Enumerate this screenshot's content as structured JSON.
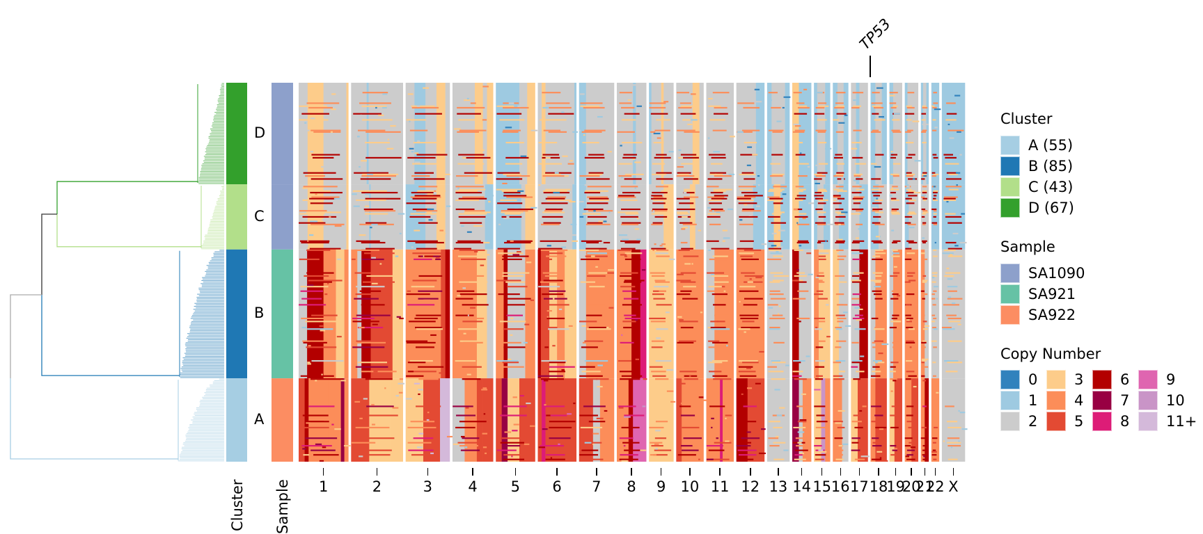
{
  "chart_data": {
    "type": "heatmap",
    "title": "",
    "xlabel": "",
    "ylabel": "",
    "x_tick_labels": [
      "1",
      "2",
      "3",
      "4",
      "5",
      "6",
      "7",
      "8",
      "9",
      "10",
      "11",
      "12",
      "13",
      "14",
      "15",
      "16",
      "17",
      "18",
      "19",
      "20",
      "21",
      "22",
      "X"
    ],
    "row_annotation_labels": [
      "Cluster",
      "Sample"
    ],
    "gene_annotations": [
      {
        "gene": "TP53",
        "chromosome": "17"
      }
    ],
    "clusters": [
      {
        "id": "D",
        "cells": 67,
        "sample": "SA1090",
        "color": "#33a02c",
        "dendro_color": "#33a02c"
      },
      {
        "id": "C",
        "cells": 43,
        "sample": "SA1090",
        "color": "#b2df8a",
        "dendro_color": "#b2df8a"
      },
      {
        "id": "B",
        "cells": 85,
        "sample": "SA921",
        "color": "#1f78b4",
        "dendro_color": "#1f78b4"
      },
      {
        "id": "A",
        "cells": 55,
        "sample": "SA922",
        "color": "#a6cee3",
        "dendro_color": "#a6cee3"
      }
    ],
    "legends": {
      "cluster": {
        "title": "Cluster",
        "items": [
          {
            "label": "A (55)",
            "color": "#a6cee3"
          },
          {
            "label": "B (85)",
            "color": "#1f78b4"
          },
          {
            "label": "C (43)",
            "color": "#b2df8a"
          },
          {
            "label": "D (67)",
            "color": "#33a02c"
          }
        ]
      },
      "sample": {
        "title": "Sample",
        "items": [
          {
            "label": "SA1090",
            "color": "#8da0cb"
          },
          {
            "label": "SA921",
            "color": "#66c2a5"
          },
          {
            "label": "SA922",
            "color": "#fc8d62"
          }
        ]
      },
      "copy_number": {
        "title": "Copy Number",
        "items": [
          {
            "label": "0",
            "color": "#3182bd"
          },
          {
            "label": "1",
            "color": "#9ecae1"
          },
          {
            "label": "2",
            "color": "#cccccc"
          },
          {
            "label": "3",
            "color": "#fdcc8a"
          },
          {
            "label": "4",
            "color": "#fc8d59"
          },
          {
            "label": "5",
            "color": "#e34a33"
          },
          {
            "label": "6",
            "color": "#b30000"
          },
          {
            "label": "7",
            "color": "#980043"
          },
          {
            "label": "8",
            "color": "#dd1c77"
          },
          {
            "label": "9",
            "color": "#df65b0"
          },
          {
            "label": "10",
            "color": "#c994c7"
          },
          {
            "label": "11+",
            "color": "#d4b9da"
          }
        ]
      }
    },
    "copy_number_profiles": {
      "D": {
        "1": [
          [
            0.18,
            2
          ],
          [
            0.5,
            3
          ],
          [
            0.96,
            2
          ],
          [
            1,
            3
          ]
        ],
        "2": [
          [
            0.3,
            2
          ],
          [
            0.34,
            1
          ],
          [
            1,
            2
          ]
        ],
        "3": [
          [
            0.2,
            2
          ],
          [
            0.45,
            1
          ],
          [
            0.7,
            2
          ],
          [
            0.9,
            3
          ],
          [
            1,
            2
          ]
        ],
        "4": [
          [
            0.55,
            2
          ],
          [
            0.75,
            3
          ],
          [
            0.85,
            2
          ],
          [
            1,
            3
          ]
        ],
        "5": [
          [
            0.1,
            1
          ],
          [
            0.6,
            1
          ],
          [
            0.8,
            2
          ],
          [
            1,
            3
          ]
        ],
        "6": [
          [
            0.1,
            2
          ],
          [
            0.2,
            3
          ],
          [
            0.95,
            2
          ],
          [
            1,
            1
          ]
        ],
        "7": [
          [
            0.2,
            1
          ],
          [
            1,
            2
          ]
        ],
        "8": [
          [
            0.55,
            2
          ],
          [
            0.65,
            1
          ],
          [
            1,
            2
          ]
        ],
        "9": [
          [
            0.1,
            1
          ],
          [
            0.5,
            2
          ],
          [
            0.6,
            3
          ],
          [
            1,
            2
          ]
        ],
        "10": [
          [
            0.6,
            2
          ],
          [
            0.85,
            3
          ],
          [
            1,
            2
          ]
        ],
        "11": [
          [
            0.2,
            2
          ],
          [
            1,
            2
          ]
        ],
        "12": [
          [
            0.7,
            2
          ],
          [
            1,
            1
          ]
        ],
        "13": [
          [
            0.2,
            1
          ],
          [
            0.8,
            2
          ],
          [
            1,
            1
          ]
        ],
        "14": [
          [
            0.35,
            3
          ],
          [
            1,
            1
          ]
        ],
        "15": [
          [
            0.2,
            1
          ],
          [
            0.7,
            2
          ],
          [
            1,
            1
          ]
        ],
        "16": [
          [
            0.3,
            1
          ],
          [
            0.7,
            2
          ],
          [
            1,
            1
          ]
        ],
        "17": [
          [
            0.3,
            2
          ],
          [
            0.5,
            1
          ],
          [
            1,
            2
          ]
        ],
        "18": [
          [
            0.3,
            1
          ],
          [
            0.7,
            2
          ],
          [
            1,
            1
          ]
        ],
        "19": [
          [
            0.3,
            1
          ],
          [
            1,
            2
          ]
        ],
        "20": [
          [
            0.2,
            1
          ],
          [
            1,
            2
          ]
        ],
        "21": [
          [
            0.3,
            1
          ],
          [
            0.7,
            2
          ],
          [
            1,
            1
          ]
        ],
        "22": [
          [
            1,
            1
          ]
        ],
        "X": [
          [
            1,
            1
          ]
        ]
      },
      "C": {
        "1": [
          [
            0.18,
            2
          ],
          [
            0.5,
            3
          ],
          [
            0.96,
            2
          ],
          [
            1,
            3
          ]
        ],
        "2": [
          [
            0.35,
            2
          ],
          [
            0.38,
            1
          ],
          [
            1,
            2
          ]
        ],
        "3": [
          [
            0.45,
            1
          ],
          [
            0.7,
            2
          ],
          [
            0.9,
            3
          ],
          [
            1,
            2
          ]
        ],
        "4": [
          [
            0.6,
            2
          ],
          [
            0.8,
            2
          ],
          [
            1,
            1
          ]
        ],
        "5": [
          [
            0.2,
            1
          ],
          [
            0.65,
            1
          ],
          [
            0.75,
            2
          ],
          [
            1,
            3
          ]
        ],
        "6": [
          [
            0.15,
            2
          ],
          [
            0.9,
            2
          ],
          [
            1,
            1
          ]
        ],
        "7": [
          [
            0.2,
            1
          ],
          [
            1,
            2
          ]
        ],
        "8": [
          [
            1,
            2
          ]
        ],
        "9": [
          [
            0.6,
            2
          ],
          [
            1,
            3
          ]
        ],
        "10": [
          [
            0.5,
            2
          ],
          [
            0.7,
            3
          ],
          [
            1,
            2
          ]
        ],
        "11": [
          [
            1,
            2
          ]
        ],
        "12": [
          [
            0.6,
            2
          ],
          [
            1,
            1
          ]
        ],
        "13": [
          [
            0.3,
            1
          ],
          [
            0.6,
            3
          ],
          [
            1,
            1
          ]
        ],
        "14": [
          [
            0.35,
            3
          ],
          [
            1,
            1
          ]
        ],
        "15": [
          [
            0.2,
            1
          ],
          [
            0.6,
            2
          ],
          [
            1,
            1
          ]
        ],
        "16": [
          [
            0.4,
            2
          ],
          [
            1,
            1
          ]
        ],
        "17": [
          [
            0.5,
            2
          ],
          [
            1,
            1
          ]
        ],
        "18": [
          [
            0.5,
            1
          ],
          [
            1,
            2
          ]
        ],
        "19": [
          [
            1,
            2
          ]
        ],
        "20": [
          [
            0.3,
            1
          ],
          [
            1,
            2
          ]
        ],
        "21": [
          [
            1,
            2
          ]
        ],
        "22": [
          [
            1,
            1
          ]
        ],
        "X": [
          [
            1,
            1
          ]
        ]
      },
      "B": {
        "1": [
          [
            0.17,
            2
          ],
          [
            0.5,
            6
          ],
          [
            0.75,
            4
          ],
          [
            0.92,
            3
          ],
          [
            1,
            4
          ]
        ],
        "2": [
          [
            0.12,
            4
          ],
          [
            0.2,
            2
          ],
          [
            0.38,
            6
          ],
          [
            0.8,
            5
          ],
          [
            1,
            3
          ]
        ],
        "3": [
          [
            0.4,
            4
          ],
          [
            0.8,
            4
          ],
          [
            0.9,
            5
          ],
          [
            1,
            6
          ]
        ],
        "4": [
          [
            0.6,
            4
          ],
          [
            0.85,
            3
          ],
          [
            1,
            2
          ]
        ],
        "5": [
          [
            0.2,
            4
          ],
          [
            0.3,
            6
          ],
          [
            0.75,
            2
          ],
          [
            1,
            4
          ]
        ],
        "6": [
          [
            0.08,
            6
          ],
          [
            0.3,
            5
          ],
          [
            0.5,
            3
          ],
          [
            0.7,
            4
          ],
          [
            1,
            3
          ]
        ],
        "7": [
          [
            0.2,
            2
          ],
          [
            1,
            4
          ]
        ],
        "8": [
          [
            0.5,
            4
          ],
          [
            0.8,
            6
          ],
          [
            1,
            8
          ]
        ],
        "9": [
          [
            1,
            3
          ]
        ],
        "10": [
          [
            1,
            4
          ]
        ],
        "11": [
          [
            0.3,
            2
          ],
          [
            1,
            4
          ]
        ],
        "12": [
          [
            1,
            4
          ]
        ],
        "13": [
          [
            1,
            2
          ]
        ],
        "14": [
          [
            0.35,
            6
          ],
          [
            1,
            2
          ]
        ],
        "15": [
          [
            0.3,
            4
          ],
          [
            0.6,
            3
          ],
          [
            1,
            3
          ]
        ],
        "16": [
          [
            0.4,
            3
          ],
          [
            1,
            2
          ]
        ],
        "17": [
          [
            0.5,
            2
          ],
          [
            1,
            6
          ]
        ],
        "18": [
          [
            0.3,
            2
          ],
          [
            1,
            4
          ]
        ],
        "19": [
          [
            0.3,
            2
          ],
          [
            1,
            4
          ]
        ],
        "20": [
          [
            1,
            4
          ]
        ],
        "21": [
          [
            0.5,
            4
          ],
          [
            1,
            2
          ]
        ],
        "22": [
          [
            1,
            2
          ]
        ],
        "X": [
          [
            1,
            2
          ]
        ]
      },
      "A": {
        "1": [
          [
            0.12,
            5
          ],
          [
            0.2,
            6
          ],
          [
            0.6,
            4
          ],
          [
            0.85,
            4
          ],
          [
            0.92,
            7
          ],
          [
            1,
            4
          ]
        ],
        "2": [
          [
            0.35,
            5
          ],
          [
            0.5,
            3
          ],
          [
            0.75,
            3
          ],
          [
            1,
            3
          ]
        ],
        "3": [
          [
            0.4,
            3
          ],
          [
            0.78,
            5
          ],
          [
            1,
            11
          ]
        ],
        "4": [
          [
            0.3,
            2
          ],
          [
            0.6,
            4
          ],
          [
            0.75,
            5
          ],
          [
            1,
            5
          ]
        ],
        "5": [
          [
            0.15,
            5
          ],
          [
            0.3,
            7
          ],
          [
            0.6,
            3
          ],
          [
            1,
            5
          ]
        ],
        "6": [
          [
            0.1,
            5
          ],
          [
            0.2,
            8
          ],
          [
            1,
            5
          ]
        ],
        "7": [
          [
            0.4,
            5
          ],
          [
            0.6,
            2
          ],
          [
            1,
            4
          ]
        ],
        "8": [
          [
            0.4,
            4
          ],
          [
            0.55,
            6
          ],
          [
            1,
            9
          ]
        ],
        "9": [
          [
            1,
            3
          ]
        ],
        "10": [
          [
            0.2,
            5
          ],
          [
            1,
            4
          ]
        ],
        "11": [
          [
            0.5,
            4
          ],
          [
            0.6,
            8
          ],
          [
            1,
            4
          ]
        ],
        "12": [
          [
            0.4,
            6
          ],
          [
            1,
            5
          ]
        ],
        "13": [
          [
            1,
            2
          ]
        ],
        "14": [
          [
            0.35,
            7
          ],
          [
            0.55,
            2
          ],
          [
            1,
            4
          ]
        ],
        "15": [
          [
            0.45,
            3
          ],
          [
            0.7,
            10
          ],
          [
            1,
            4
          ]
        ],
        "16": [
          [
            0.6,
            4
          ],
          [
            1,
            2
          ]
        ],
        "17": [
          [
            0.4,
            3
          ],
          [
            1,
            5
          ]
        ],
        "18": [
          [
            0.3,
            4
          ],
          [
            1,
            5
          ]
        ],
        "19": [
          [
            0.4,
            3
          ],
          [
            1,
            5
          ]
        ],
        "20": [
          [
            0.5,
            4
          ],
          [
            1,
            5
          ]
        ],
        "21": [
          [
            0.5,
            4
          ],
          [
            1,
            6
          ]
        ],
        "22": [
          [
            1,
            4
          ]
        ],
        "X": [
          [
            1,
            2
          ]
        ]
      }
    },
    "chromosome_relative_widths": {
      "1": 71,
      "2": 74,
      "3": 63,
      "4": 58,
      "5": 56,
      "6": 55,
      "7": 50,
      "8": 42,
      "9": 35,
      "10": 39,
      "11": 39,
      "12": 40,
      "13": 32,
      "14": 27,
      "15": 23,
      "16": 22,
      "17": 24,
      "18": 23,
      "19": 18,
      "20": 19,
      "21": 11,
      "22": 11,
      "X": 33
    }
  }
}
